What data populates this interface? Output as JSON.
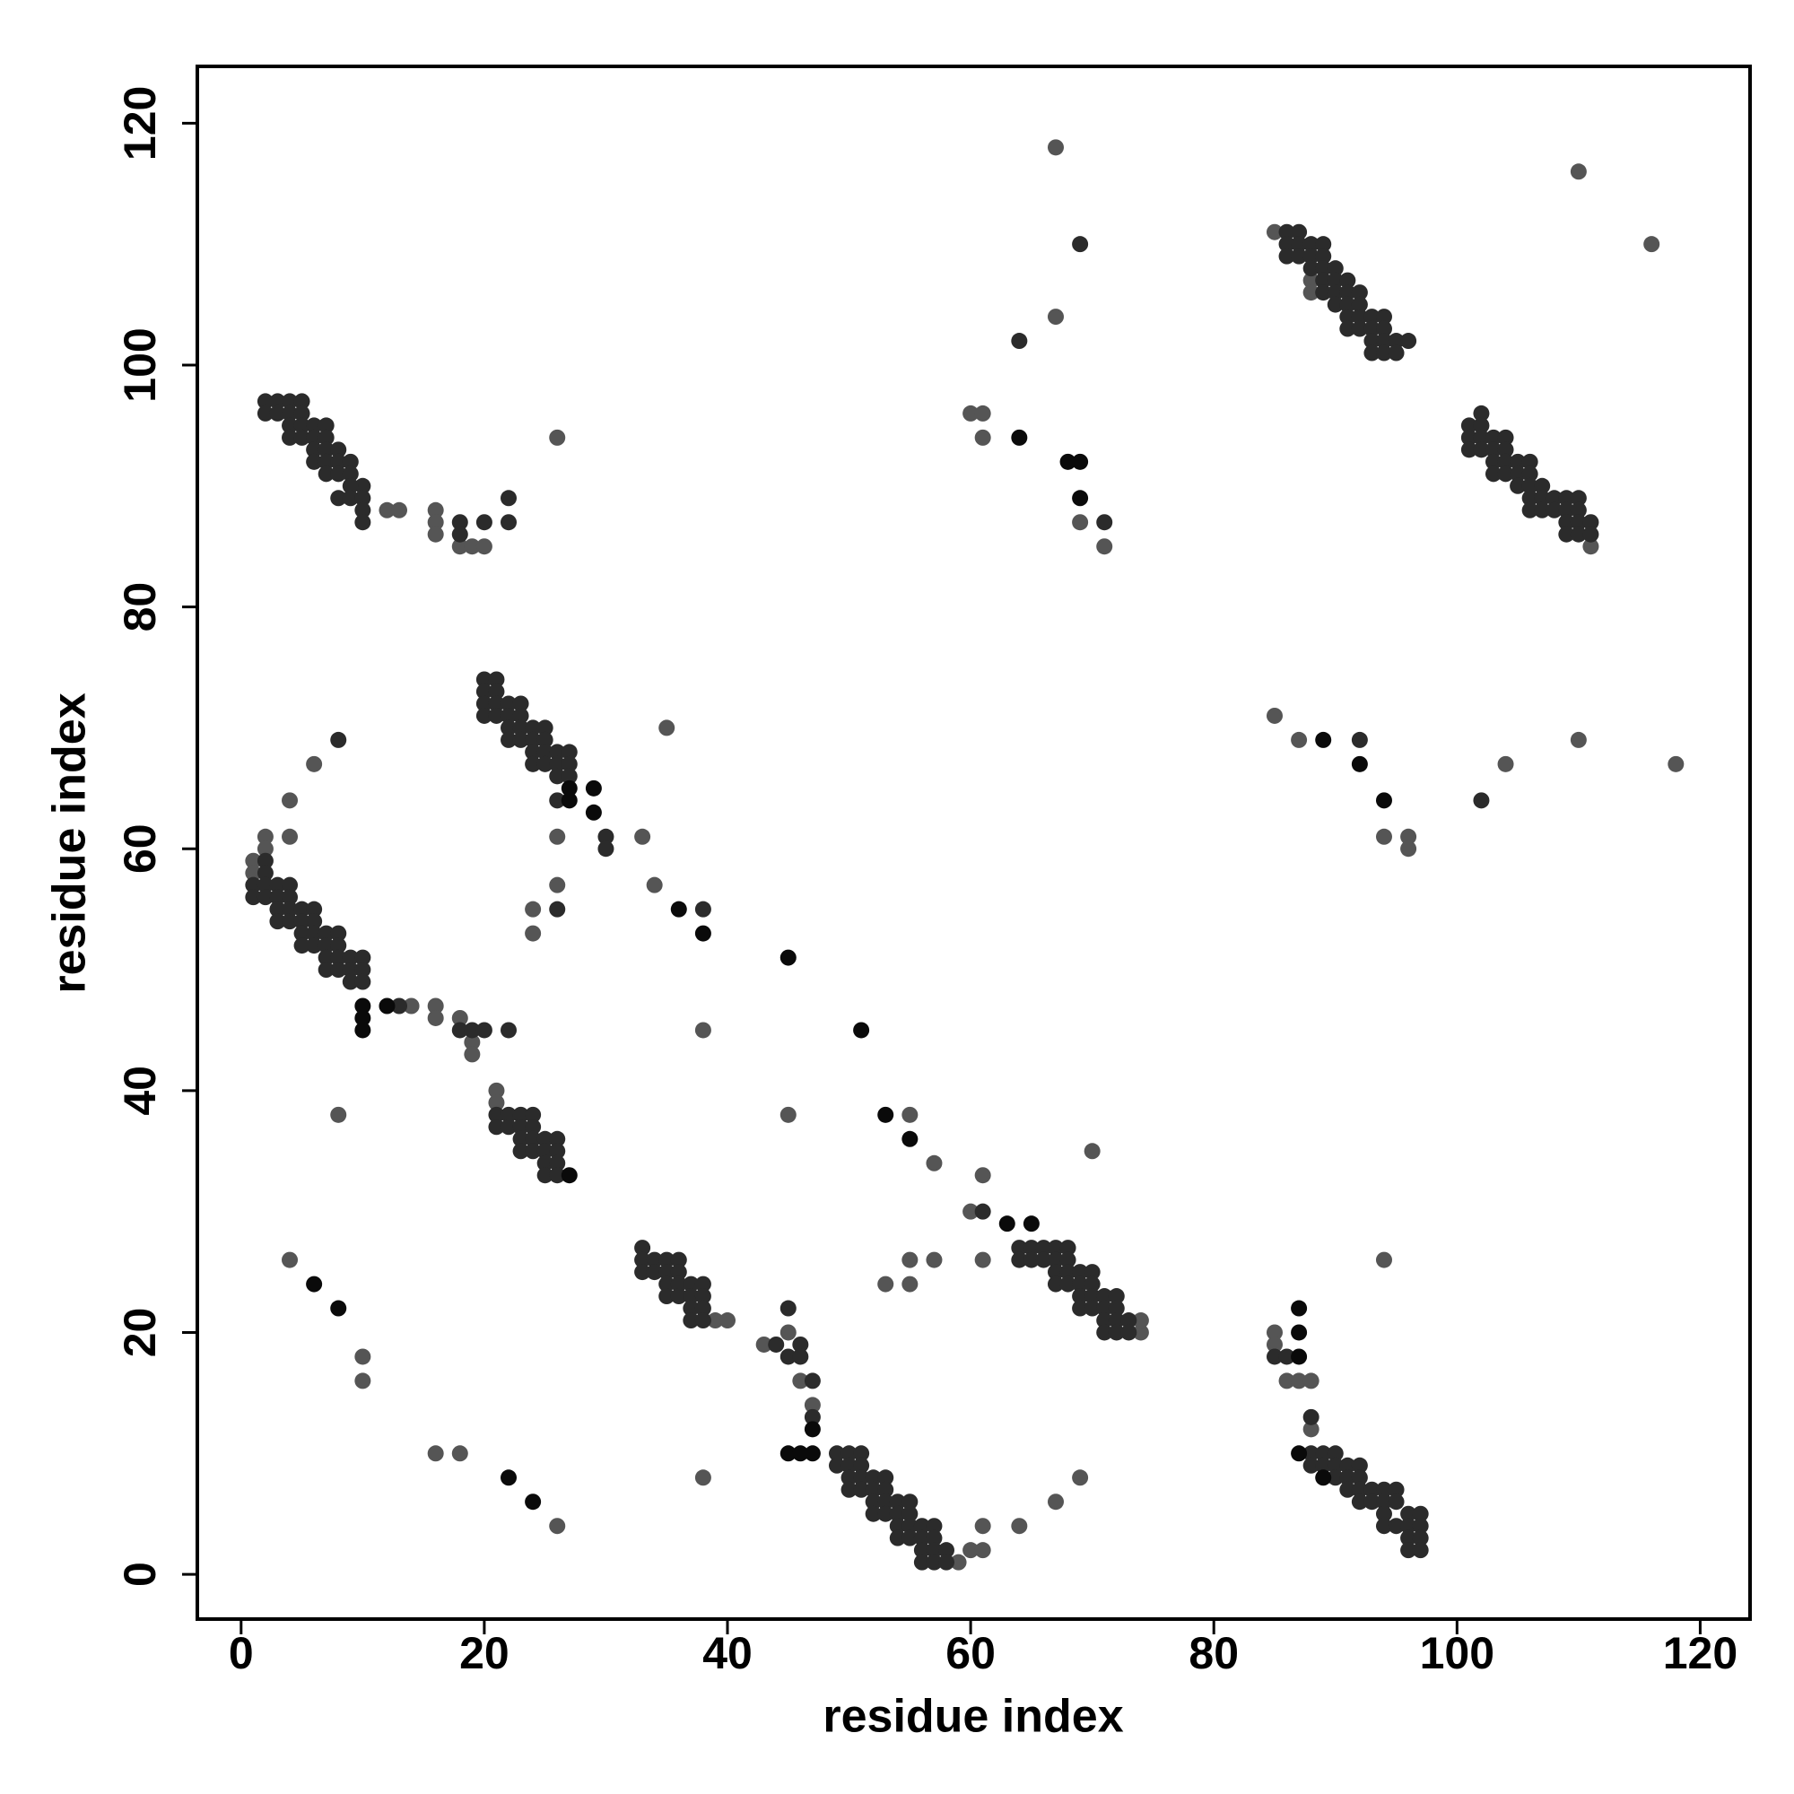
{
  "chart_data": {
    "type": "scatter",
    "xlabel": "residue index",
    "ylabel": "residue index",
    "xlim": [
      -3.6,
      124.1
    ],
    "ylim": [
      -3.7,
      124.7
    ],
    "xticks": [
      0,
      20,
      40,
      60,
      80,
      100,
      120
    ],
    "yticks": [
      0,
      20,
      40,
      60,
      80,
      100,
      120
    ],
    "grid": false,
    "series": [
      {
        "color": "#555555",
        "x": [
          26,
          16,
          16,
          16,
          18,
          19,
          20,
          12,
          13,
          35,
          34,
          33,
          26,
          26,
          24,
          24,
          4,
          4,
          6,
          2,
          2,
          1,
          1,
          14,
          16,
          16,
          18,
          19,
          19,
          38,
          8,
          45,
          21,
          21,
          4,
          10,
          10,
          16,
          18,
          26,
          38,
          43,
          45,
          46,
          47,
          59,
          60,
          61,
          61,
          64,
          67,
          69,
          55,
          57,
          61,
          60,
          70,
          53,
          55,
          55,
          57,
          61,
          74,
          74,
          85,
          85,
          86,
          87,
          88,
          88,
          94,
          85,
          88,
          88,
          67,
          67,
          60,
          61,
          61,
          69,
          71,
          85,
          87,
          94,
          96,
          96,
          104,
          110,
          118,
          111,
          110,
          116,
          39,
          40
        ],
        "y": [
          94,
          88,
          87,
          86,
          85,
          85,
          85,
          88,
          88,
          70,
          57,
          61,
          61,
          57,
          55,
          53,
          64,
          61,
          67,
          61,
          60,
          59,
          58,
          47,
          47,
          46,
          46,
          44,
          43,
          45,
          38,
          38,
          40,
          39,
          26,
          18,
          16,
          10,
          10,
          4,
          8,
          19,
          20,
          16,
          14,
          1,
          2,
          2,
          4,
          4,
          6,
          8,
          38,
          34,
          33,
          30,
          35,
          24,
          24,
          26,
          26,
          26,
          20,
          21,
          20,
          19,
          16,
          16,
          16,
          12,
          26,
          111,
          107,
          106,
          118,
          104,
          96,
          96,
          94,
          87,
          85,
          71,
          69,
          61,
          61,
          60,
          67,
          69,
          67,
          85,
          116,
          110,
          21,
          21
        ]
      },
      {
        "color": "#2b2b2b",
        "x": [
          2,
          3,
          4,
          5,
          2,
          3,
          4,
          5,
          4,
          5,
          6,
          7,
          4,
          5,
          6,
          7,
          6,
          7,
          8,
          6,
          7,
          8,
          9,
          7,
          8,
          9,
          10,
          9,
          8,
          9,
          10,
          10,
          10,
          18,
          18,
          20,
          22,
          22,
          20,
          21,
          20,
          21,
          20,
          21,
          22,
          23,
          20,
          21,
          22,
          23,
          22,
          23,
          24,
          25,
          22,
          23,
          24,
          25,
          24,
          25,
          26,
          27,
          24,
          25,
          26,
          27,
          26,
          27,
          26,
          30,
          30,
          26,
          38,
          2,
          2,
          1,
          2,
          3,
          4,
          1,
          2,
          3,
          4,
          3,
          4,
          5,
          6,
          3,
          4,
          5,
          6,
          5,
          6,
          7,
          8,
          5,
          6,
          7,
          8,
          7,
          8,
          9,
          10,
          7,
          8,
          9,
          10,
          9,
          10,
          13,
          18,
          19,
          20,
          22,
          8,
          21,
          22,
          23,
          24,
          21,
          22,
          23,
          24,
          23,
          24,
          25,
          26,
          23,
          24,
          25,
          26,
          25,
          26,
          25,
          26,
          33,
          33,
          34,
          35,
          36,
          33,
          34,
          35,
          36,
          35,
          36,
          37,
          38,
          35,
          36,
          37,
          38,
          37,
          38,
          37,
          38,
          44,
          45,
          46,
          45,
          46,
          47,
          47,
          49,
          50,
          51,
          49,
          50,
          51,
          50,
          51,
          52,
          53,
          50,
          51,
          52,
          53,
          52,
          53,
          54,
          55,
          52,
          53,
          54,
          55,
          54,
          55,
          56,
          57,
          54,
          55,
          56,
          57,
          56,
          57,
          58,
          56,
          57,
          58,
          61,
          64,
          65,
          66,
          67,
          68,
          64,
          65,
          66,
          67,
          68,
          67,
          68,
          69,
          70,
          67,
          68,
          69,
          70,
          69,
          70,
          71,
          72,
          69,
          70,
          71,
          72,
          71,
          72,
          73,
          71,
          72,
          73,
          85,
          86,
          88,
          88,
          89,
          90,
          88,
          89,
          90,
          91,
          92,
          90,
          91,
          92,
          91,
          92,
          93,
          94,
          95,
          92,
          93,
          94,
          95,
          94,
          96,
          97,
          94,
          95,
          96,
          97,
          96,
          97,
          96,
          97,
          86,
          87,
          86,
          87,
          88,
          89,
          86,
          87,
          88,
          89,
          88,
          89,
          90,
          89,
          90,
          91,
          89,
          90,
          91,
          92,
          90,
          91,
          92,
          91,
          92,
          93,
          94,
          91,
          92,
          93,
          94,
          93,
          94,
          95,
          96,
          93,
          94,
          95,
          102,
          101,
          102,
          101,
          102,
          103,
          104,
          101,
          102,
          103,
          104,
          103,
          104,
          105,
          106,
          103,
          104,
          105,
          106,
          105,
          106,
          107,
          106,
          107,
          108,
          109,
          110,
          106,
          107,
          108,
          109,
          110,
          109,
          110,
          111,
          109,
          110,
          111,
          69,
          64,
          71,
          92,
          102
        ],
        "y": [
          97,
          97,
          97,
          97,
          96,
          96,
          96,
          96,
          95,
          95,
          95,
          95,
          94,
          94,
          94,
          94,
          93,
          93,
          93,
          92,
          92,
          92,
          92,
          91,
          91,
          91,
          90,
          90,
          89,
          89,
          89,
          88,
          87,
          87,
          86,
          87,
          89,
          87,
          74,
          74,
          73,
          73,
          72,
          72,
          72,
          72,
          71,
          71,
          71,
          71,
          70,
          70,
          70,
          70,
          69,
          69,
          69,
          69,
          68,
          68,
          68,
          68,
          67,
          67,
          67,
          67,
          66,
          66,
          64,
          61,
          60,
          55,
          55,
          59,
          58,
          57,
          57,
          57,
          57,
          56,
          56,
          56,
          56,
          55,
          55,
          55,
          55,
          54,
          54,
          54,
          54,
          53,
          53,
          53,
          53,
          52,
          52,
          52,
          52,
          51,
          51,
          51,
          51,
          50,
          50,
          50,
          50,
          49,
          49,
          47,
          45,
          45,
          45,
          45,
          69,
          38,
          38,
          38,
          38,
          37,
          37,
          37,
          37,
          36,
          36,
          36,
          36,
          35,
          35,
          35,
          35,
          34,
          34,
          33,
          33,
          27,
          26,
          26,
          26,
          26,
          25,
          25,
          25,
          25,
          24,
          24,
          24,
          24,
          23,
          23,
          23,
          23,
          22,
          22,
          21,
          21,
          19,
          22,
          19,
          18,
          18,
          16,
          13,
          10,
          10,
          10,
          9,
          9,
          9,
          8,
          8,
          8,
          8,
          7,
          7,
          7,
          7,
          6,
          6,
          6,
          6,
          5,
          5,
          5,
          5,
          4,
          4,
          4,
          4,
          3,
          3,
          3,
          3,
          2,
          2,
          2,
          1,
          1,
          1,
          30,
          27,
          27,
          27,
          27,
          27,
          26,
          26,
          26,
          26,
          26,
          25,
          25,
          25,
          25,
          24,
          24,
          24,
          24,
          23,
          23,
          23,
          23,
          22,
          22,
          22,
          22,
          21,
          21,
          21,
          20,
          20,
          20,
          18,
          18,
          13,
          10,
          10,
          10,
          9,
          9,
          9,
          9,
          9,
          8,
          8,
          8,
          7,
          7,
          7,
          7,
          7,
          6,
          6,
          6,
          6,
          5,
          5,
          5,
          4,
          4,
          4,
          4,
          3,
          3,
          2,
          2,
          111,
          111,
          110,
          110,
          110,
          110,
          109,
          109,
          109,
          109,
          108,
          108,
          108,
          107,
          107,
          107,
          106,
          106,
          106,
          106,
          105,
          105,
          105,
          104,
          104,
          104,
          104,
          103,
          103,
          103,
          103,
          102,
          102,
          102,
          102,
          101,
          101,
          101,
          96,
          95,
          95,
          94,
          94,
          94,
          94,
          93,
          93,
          93,
          93,
          92,
          92,
          92,
          92,
          91,
          91,
          91,
          91,
          90,
          90,
          90,
          89,
          89,
          89,
          89,
          89,
          88,
          88,
          88,
          88,
          88,
          87,
          87,
          87,
          86,
          86,
          86,
          110,
          102,
          87,
          69,
          64
        ]
      },
      {
        "color": "#0a0a0a",
        "x": [
          45,
          51,
          29,
          29,
          38,
          36,
          53,
          55,
          63,
          65,
          6,
          8,
          22,
          24,
          89,
          69,
          69,
          68,
          92,
          10,
          10,
          10,
          12,
          45,
          46,
          47,
          47,
          87,
          89,
          27,
          27,
          27,
          87,
          87,
          87,
          64,
          94
        ],
        "y": [
          51,
          45,
          65,
          63,
          53,
          55,
          38,
          36,
          29,
          29,
          24,
          22,
          8,
          6,
          69,
          89,
          92,
          92,
          67,
          47,
          46,
          45,
          47,
          10,
          10,
          10,
          12,
          10,
          8,
          33,
          64,
          65,
          18,
          20,
          22,
          94,
          64
        ]
      }
    ]
  }
}
